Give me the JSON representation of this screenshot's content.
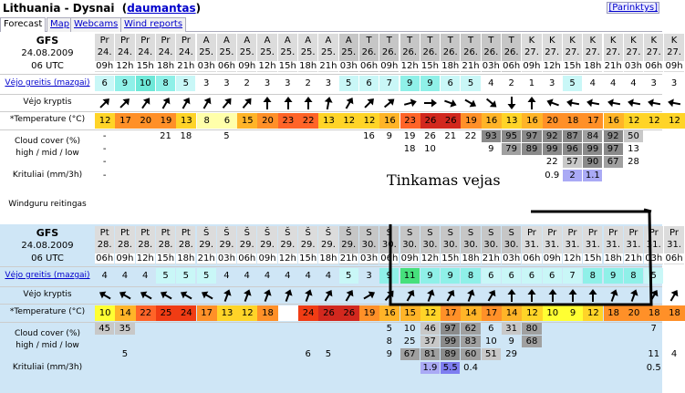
{
  "header": {
    "title": "Lithuania - Dysnai",
    "user": "daumantas",
    "link": "[Parinktys]"
  },
  "tabs": [
    "Forecast",
    "Map",
    "Webcams",
    "Wind reports"
  ],
  "labels": {
    "model": "GFS",
    "date": "24.08.2009",
    "utc": "06 UTC",
    "wind_speed": "Vėjo greitis (mazgai)",
    "wind_dir": "Vėjo kryptis",
    "temperature": "*Temperature (°C)",
    "cloud_l1": "Cloud cover (%)",
    "cloud_l2": "high / mid / low",
    "rain": "Krituliai (mm/3h)",
    "rating": "Windguru reitingas"
  },
  "annotation": "Tinkamas vejas",
  "colors": {
    "header_bg": "#dcdcdc",
    "header_weekend": "#c6c6c6",
    "light_blue": "#cfe6f6",
    "t10": "#ffff33",
    "t12": "#ffd428",
    "t15": "#ffb428",
    "t19": "#ff9028",
    "t22": "#ff6428",
    "t25": "#f03c14",
    "t27": "#d2281e"
  },
  "forecast": [
    {
      "days": [
        "Pr",
        "Pr",
        "Pr",
        "Pr",
        "Pr",
        "A",
        "A",
        "A",
        "A",
        "A",
        "A",
        "A",
        "A",
        "T",
        "T",
        "T",
        "T",
        "T",
        "T",
        "T",
        "T",
        "K",
        "K",
        "K",
        "K",
        "K",
        "K",
        "K",
        "K"
      ],
      "dates": [
        "24.",
        "24.",
        "24.",
        "24.",
        "24.",
        "25.",
        "25.",
        "25.",
        "25.",
        "25.",
        "25.",
        "25.",
        "25.",
        "26.",
        "26.",
        "26.",
        "26.",
        "26.",
        "26.",
        "26.",
        "26.",
        "27.",
        "27.",
        "27.",
        "27.",
        "27.",
        "27.",
        "27.",
        "27."
      ],
      "hours": [
        "09h",
        "12h",
        "15h",
        "18h",
        "21h",
        "03h",
        "06h",
        "09h",
        "12h",
        "15h",
        "18h",
        "21h",
        "03h",
        "06h",
        "09h",
        "12h",
        "15h",
        "18h",
        "21h",
        "03h",
        "06h",
        "09h",
        "12h",
        "15h",
        "18h",
        "21h",
        "03h",
        "06h",
        "09h"
      ],
      "wind": [
        "6",
        "9",
        "10",
        "8",
        "5",
        "3",
        "3",
        "2",
        "3",
        "3",
        "2",
        "3",
        "5",
        "6",
        "7",
        "9",
        "9",
        "6",
        "5",
        "4",
        "2",
        "1",
        "3",
        "5",
        "4",
        "4",
        "4",
        "3",
        "3"
      ],
      "dir": [
        315,
        315,
        305,
        300,
        300,
        300,
        310,
        310,
        270,
        270,
        270,
        280,
        300,
        315,
        320,
        345,
        0,
        20,
        30,
        40,
        90,
        270,
        200,
        190,
        190,
        190,
        190,
        190,
        190
      ],
      "temp": [
        "12",
        "17",
        "20",
        "19",
        "13",
        "8",
        "6",
        "15",
        "20",
        "23",
        "22",
        "13",
        "12",
        "12",
        "16",
        "23",
        "26",
        "26",
        "19",
        "16",
        "13",
        "16",
        "20",
        "18",
        "17",
        "16",
        "12",
        "12",
        "12"
      ],
      "cloud_h": [
        "-",
        "",
        "",
        "21",
        "18",
        "",
        "5",
        "",
        "",
        "",
        "",
        "",
        "",
        "16",
        "9",
        "19",
        "26",
        "21",
        "22",
        "93",
        "95",
        "97",
        "92",
        "87",
        "84",
        "92",
        "50",
        "",
        ""
      ],
      "cloud_m": [
        "-",
        "",
        "",
        "",
        "",
        "",
        "",
        "",
        "",
        "",
        "",
        "",
        "",
        "",
        "",
        "18",
        "10",
        "",
        "",
        "9",
        "79",
        "89",
        "99",
        "96",
        "99",
        "97",
        "13",
        "",
        ""
      ],
      "cloud_l": [
        "-",
        "",
        "",
        "",
        "",
        "",
        "",
        "",
        "",
        "",
        "",
        "",
        "",
        "",
        "",
        "",
        "",
        "",
        "",
        "",
        "",
        "",
        "22",
        "57",
        "90",
        "67",
        "28",
        "",
        ""
      ],
      "rain": [
        "-",
        "",
        "",
        "",
        "",
        "",
        "",
        "",
        "",
        "",
        "",
        "",
        "",
        "",
        "",
        "",
        "",
        "",
        "",
        "",
        "",
        "",
        "0.9",
        "2",
        "1.1",
        "",
        "",
        "",
        ""
      ]
    },
    {
      "days": [
        "Pt",
        "Pt",
        "Pt",
        "Pt",
        "Pt",
        "Š",
        "Š",
        "Š",
        "Š",
        "Š",
        "Š",
        "Š",
        "Š",
        "S",
        "S",
        "S",
        "S",
        "S",
        "S",
        "S",
        "S",
        "Pr",
        "Pr",
        "Pr",
        "Pr",
        "Pr",
        "Pr",
        "Pr",
        "Pr"
      ],
      "dates": [
        "28.",
        "28.",
        "28.",
        "28.",
        "28.",
        "29.",
        "29.",
        "29.",
        "29.",
        "29.",
        "29.",
        "29.",
        "29.",
        "30.",
        "30.",
        "30.",
        "30.",
        "30.",
        "30.",
        "30.",
        "30.",
        "31.",
        "31.",
        "31.",
        "31.",
        "31.",
        "31.",
        "31.",
        "31."
      ],
      "hours": [
        "06h",
        "09h",
        "12h",
        "15h",
        "18h",
        "21h",
        "03h",
        "06h",
        "09h",
        "12h",
        "15h",
        "18h",
        "21h",
        "03h",
        "06h",
        "09h",
        "12h",
        "15h",
        "18h",
        "21h",
        "03h",
        "06h",
        "09h",
        "12h",
        "15h",
        "18h",
        "21h",
        "03h",
        "06h"
      ],
      "wind": [
        "4",
        "4",
        "4",
        "5",
        "5",
        "5",
        "4",
        "4",
        "4",
        "4",
        "4",
        "4",
        "5",
        "3",
        "9",
        "11",
        "9",
        "9",
        "8",
        "6",
        "6",
        "6",
        "6",
        "7",
        "8",
        "9",
        "8",
        "5",
        ""
      ],
      "dir": [
        210,
        210,
        210,
        210,
        210,
        210,
        290,
        290,
        290,
        290,
        290,
        300,
        300,
        330,
        310,
        300,
        290,
        300,
        290,
        300,
        270,
        270,
        270,
        270,
        270,
        290,
        290,
        300,
        300
      ],
      "temp": [
        "10",
        "14",
        "22",
        "25",
        "24",
        "17",
        "13",
        "12",
        "18",
        "",
        "24",
        "26",
        "26",
        "19",
        "16",
        "15",
        "12",
        "17",
        "14",
        "17",
        "14",
        "12",
        "10",
        "9",
        "12",
        "18",
        "20",
        "18",
        "18"
      ],
      "cloud_h": [
        "45",
        "35",
        "",
        "",
        "",
        "",
        "",
        "",
        "",
        "",
        "",
        "",
        "",
        "",
        "5",
        "10",
        "46",
        "97",
        "62",
        "6",
        "31",
        "80",
        "",
        "",
        "",
        "",
        "",
        "7",
        ""
      ],
      "cloud_m": [
        "",
        "",
        "",
        "",
        "",
        "",
        "",
        "",
        "",
        "",
        "",
        "",
        "",
        "",
        "8",
        "25",
        "37",
        "99",
        "83",
        "10",
        "9",
        "68",
        "",
        "",
        "",
        "",
        "",
        "",
        ""
      ],
      "cloud_l": [
        "",
        "5",
        "",
        "",
        "",
        "",
        "",
        "",
        "",
        "",
        "6",
        "5",
        "",
        "",
        "9",
        "67",
        "81",
        "89",
        "60",
        "51",
        "29",
        "",
        "",
        "",
        "",
        "",
        "",
        "11",
        "4"
      ],
      "rain": [
        "",
        "",
        "",
        "",
        "",
        "",
        "",
        "",
        "",
        "",
        "",
        "",
        "",
        "",
        "",
        "",
        "1.9",
        "5.5",
        "0.4",
        "",
        "",
        "",
        "",
        "",
        "",
        "",
        "",
        "0.5",
        ""
      ]
    }
  ]
}
